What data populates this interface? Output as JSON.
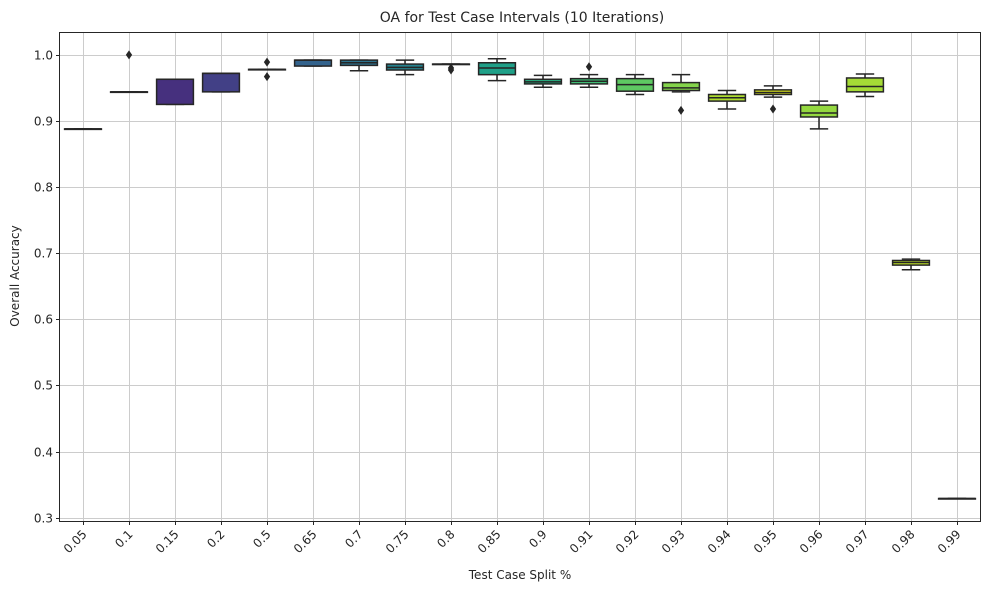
{
  "chart_data": {
    "type": "box",
    "title": "OA for Test Case Intervals (10 Iterations)",
    "xlabel": "Test Case Split %",
    "ylabel": "Overall Accuracy",
    "ylim": [
      0.295,
      1.033
    ],
    "yticks": [
      0.3,
      0.4,
      0.5,
      0.6,
      0.7,
      0.8,
      0.9,
      1.0
    ],
    "ytick_labels": [
      "0.3",
      "0.4",
      "0.5",
      "0.6",
      "0.7",
      "0.8",
      "0.9",
      "1.0"
    ],
    "grid": true,
    "categories": [
      "0.05",
      "0.1",
      "0.15",
      "0.2",
      "0.5",
      "0.65",
      "0.7",
      "0.75",
      "0.8",
      "0.85",
      "0.9",
      "0.91",
      "0.92",
      "0.93",
      "0.94",
      "0.95",
      "0.96",
      "0.97",
      "0.98",
      "0.99"
    ],
    "boxes": [
      {
        "whislo": 0.888,
        "q1": 0.888,
        "med": 0.888,
        "q3": 0.888,
        "whishi": 0.888,
        "fliers": [],
        "color": "#440154"
      },
      {
        "whislo": 0.944,
        "q1": 0.944,
        "med": 0.944,
        "q3": 0.944,
        "whishi": 0.944,
        "fliers": [
          1.0
        ],
        "color": "#46085c"
      },
      {
        "whislo": 0.925,
        "q1": 0.925,
        "med": 0.963,
        "q3": 0.963,
        "whishi": 0.963,
        "fliers": [],
        "color": "#46307e"
      },
      {
        "whislo": 0.944,
        "q1": 0.944,
        "med": 0.972,
        "q3": 0.972,
        "whishi": 0.972,
        "fliers": [],
        "color": "#424086"
      },
      {
        "whislo": 0.978,
        "q1": 0.978,
        "med": 0.978,
        "q3": 0.978,
        "whishi": 0.978,
        "fliers": [
          0.989,
          0.967
        ],
        "color": "#3b528b"
      },
      {
        "whislo": 0.983,
        "q1": 0.983,
        "med": 0.992,
        "q3": 0.992,
        "whishi": 0.992,
        "fliers": [],
        "color": "#33638d"
      },
      {
        "whislo": 0.976,
        "q1": 0.984,
        "med": 0.988,
        "q3": 0.992,
        "whishi": 0.992,
        "fliers": [],
        "color": "#2c728e"
      },
      {
        "whislo": 0.97,
        "q1": 0.977,
        "med": 0.981,
        "q3": 0.986,
        "whishi": 0.992,
        "fliers": [],
        "color": "#26828e"
      },
      {
        "whislo": 0.986,
        "q1": 0.986,
        "med": 0.986,
        "q3": 0.986,
        "whishi": 0.986,
        "fliers": [
          0.98,
          0.977
        ],
        "color": "#21918c"
      },
      {
        "whislo": 0.961,
        "q1": 0.97,
        "med": 0.98,
        "q3": 0.988,
        "whishi": 0.994,
        "fliers": [],
        "color": "#1fa088"
      },
      {
        "whislo": 0.951,
        "q1": 0.956,
        "med": 0.959,
        "q3": 0.963,
        "whishi": 0.969,
        "fliers": [],
        "color": "#28ae80"
      },
      {
        "whislo": 0.951,
        "q1": 0.956,
        "med": 0.96,
        "q3": 0.964,
        "whishi": 0.97,
        "fliers": [
          0.982
        ],
        "color": "#3fbc73"
      },
      {
        "whislo": 0.94,
        "q1": 0.945,
        "med": 0.955,
        "q3": 0.964,
        "whishi": 0.97,
        "fliers": [],
        "color": "#5ec962"
      },
      {
        "whislo": 0.944,
        "q1": 0.946,
        "med": 0.95,
        "q3": 0.958,
        "whishi": 0.97,
        "fliers": [
          0.916
        ],
        "color": "#84d44b"
      },
      {
        "whislo": 0.918,
        "q1": 0.93,
        "med": 0.935,
        "q3": 0.94,
        "whishi": 0.946,
        "fliers": [],
        "color": "#addc30"
      },
      {
        "whislo": 0.936,
        "q1": 0.94,
        "med": 0.943,
        "q3": 0.947,
        "whishi": 0.953,
        "fliers": [
          0.918
        ],
        "color": "#d8e219"
      },
      {
        "whislo": 0.888,
        "q1": 0.906,
        "med": 0.912,
        "q3": 0.924,
        "whishi": 0.93,
        "fliers": [],
        "color": "#94d840"
      },
      {
        "whislo": 0.937,
        "q1": 0.944,
        "med": 0.952,
        "q3": 0.965,
        "whishi": 0.971,
        "fliers": [],
        "color": "#a5db36"
      },
      {
        "whislo": 0.675,
        "q1": 0.682,
        "med": 0.686,
        "q3": 0.689,
        "whishi": 0.691,
        "fliers": [],
        "color": "#bddf26"
      },
      {
        "whislo": 0.329,
        "q1": 0.329,
        "med": 0.329,
        "q3": 0.329,
        "whishi": 0.329,
        "fliers": [],
        "color": "#fde725"
      }
    ]
  }
}
